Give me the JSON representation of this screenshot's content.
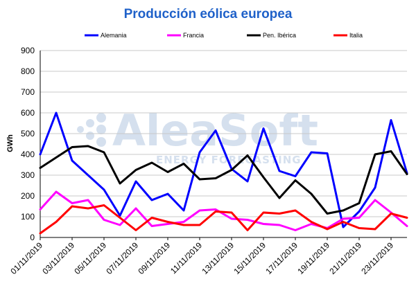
{
  "chart_data": {
    "type": "line",
    "title": "Producción eólica europea",
    "ylabel": "GWh",
    "xlabel": "",
    "ylim": [
      0,
      900
    ],
    "yticks": [
      "0",
      "100",
      "200",
      "300",
      "400",
      "500",
      "600",
      "700",
      "800",
      "900"
    ],
    "x": [
      "01/11/2019",
      "02/11/2019",
      "03/11/2019",
      "04/11/2019",
      "05/11/2019",
      "06/11/2019",
      "07/11/2019",
      "08/11/2019",
      "09/11/2019",
      "10/11/2019",
      "11/11/2019",
      "12/11/2019",
      "13/11/2019",
      "14/11/2019",
      "15/11/2019",
      "16/11/2019",
      "17/11/2019",
      "18/11/2019",
      "19/11/2019",
      "20/11/2019",
      "21/11/2019",
      "22/11/2019",
      "23/11/2019",
      "24/11/2019"
    ],
    "xtick_labels": [
      "01/11/2019",
      "03/11/2019",
      "05/11/2019",
      "07/11/2019",
      "09/11/2019",
      "11/11/2019",
      "13/11/2019",
      "15/11/2019",
      "17/11/2019",
      "19/11/2019",
      "21/11/2019",
      "23/11/2019"
    ],
    "grid": true,
    "legend_position": "top",
    "series": [
      {
        "name": "Alemania",
        "color": "#0000ff",
        "values": [
          400,
          600,
          370,
          300,
          230,
          105,
          270,
          180,
          210,
          130,
          410,
          515,
          330,
          270,
          525,
          320,
          295,
          410,
          405,
          50,
          125,
          240,
          565,
          310
        ]
      },
      {
        "name": "Francia",
        "color": "#ff00ff",
        "values": [
          135,
          220,
          165,
          180,
          85,
          60,
          140,
          55,
          65,
          75,
          130,
          135,
          90,
          85,
          65,
          60,
          35,
          65,
          45,
          90,
          95,
          180,
          120,
          55
        ]
      },
      {
        "name": "Pen. Ibérica",
        "color": "#000000",
        "values": [
          335,
          385,
          435,
          440,
          410,
          260,
          325,
          360,
          315,
          355,
          280,
          285,
          325,
          395,
          290,
          190,
          275,
          210,
          115,
          130,
          165,
          400,
          415,
          305
        ]
      },
      {
        "name": "Italia",
        "color": "#ff0000",
        "values": [
          20,
          75,
          150,
          140,
          155,
          95,
          35,
          95,
          75,
          60,
          60,
          125,
          120,
          35,
          120,
          115,
          130,
          75,
          40,
          75,
          45,
          40,
          115,
          95
        ]
      }
    ]
  },
  "watermark": {
    "big": "AleaSoft",
    "small": "ENERGY FORECASTING"
  },
  "colors": {
    "title": "#1f61c9",
    "grid": "#c8c8c8"
  }
}
